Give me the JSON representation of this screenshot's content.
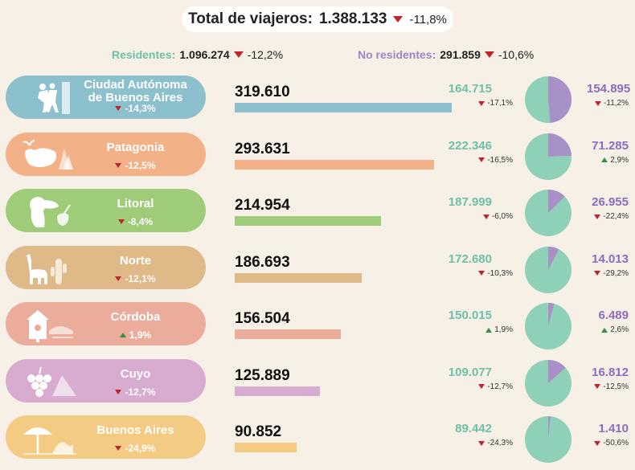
{
  "header": {
    "total_label": "Total de viajeros:",
    "total_value": "1.388.133",
    "total_change": "-11,8%",
    "residents_label": "Residentes:",
    "residents_value": "1.096.274",
    "residents_change": "-12,2%",
    "nonresidents_label": "No residentes:",
    "nonresidents_value": "291.859",
    "nonresidents_change": "-10,6%"
  },
  "colors": {
    "residents": "#8fd0b9",
    "nonresidents": "#a890c8"
  },
  "chart_data": {
    "type": "bar",
    "categories": [
      "Ciudad Autónoma de Buenos Aires",
      "Patagonia",
      "Litoral",
      "Norte",
      "Córdoba",
      "Cuyo",
      "Buenos Aires"
    ],
    "series": [
      {
        "name": "Total",
        "values": [
          319610,
          293631,
          214954,
          186693,
          156504,
          125889,
          90852
        ]
      },
      {
        "name": "Residentes",
        "values": [
          164715,
          222346,
          187999,
          172680,
          150015,
          109077,
          89442
        ]
      },
      {
        "name": "No residentes",
        "values": [
          154895,
          71285,
          26955,
          14013,
          6489,
          16812,
          1410
        ]
      }
    ],
    "regions": [
      {
        "name_l1": "Ciudad Autónoma",
        "name_l2": "de Buenos Aires",
        "icon": "tango-dancers-icon",
        "color": "#8cc0cd",
        "bar_color": "#8cc0cd",
        "total": "319.610",
        "total_num": 319610,
        "change": "-14,3%",
        "change_dir": "down",
        "res": "164.715",
        "res_num": 164715,
        "res_change": "-17,1%",
        "res_dir": "down",
        "nr": "154.895",
        "nr_num": 154895,
        "nr_change": "-11,2%",
        "nr_dir": "down"
      },
      {
        "name_l1": "Patagonia",
        "name_l2": "",
        "icon": "whale-icon",
        "color": "#f2b187",
        "bar_color": "#f2b187",
        "total": "293.631",
        "total_num": 293631,
        "change": "-12,5%",
        "change_dir": "down",
        "res": "222.346",
        "res_num": 222346,
        "res_change": "-16,5%",
        "res_dir": "down",
        "nr": "71.285",
        "nr_num": 71285,
        "nr_change": "2,9%",
        "nr_dir": "up"
      },
      {
        "name_l1": "Litoral",
        "name_l2": "",
        "icon": "toucan-icon",
        "color": "#9fcc79",
        "bar_color": "#9fcc79",
        "total": "214.954",
        "total_num": 214954,
        "change": "-8,4%",
        "change_dir": "down",
        "res": "187.999",
        "res_num": 187999,
        "res_change": "-6,0%",
        "res_dir": "down",
        "nr": "26.955",
        "nr_num": 26955,
        "nr_change": "-22,4%",
        "nr_dir": "down"
      },
      {
        "name_l1": "Norte",
        "name_l2": "",
        "icon": "llama-icon",
        "color": "#dfb988",
        "bar_color": "#dfb988",
        "total": "186.693",
        "total_num": 186693,
        "change": "-12,1%",
        "change_dir": "down",
        "res": "172.680",
        "res_num": 172680,
        "res_change": "-10,3%",
        "res_dir": "down",
        "nr": "14.013",
        "nr_num": 14013,
        "nr_change": "-29,2%",
        "nr_dir": "down"
      },
      {
        "name_l1": "Córdoba",
        "name_l2": "",
        "icon": "birdhouse-icon",
        "color": "#ecac9c",
        "bar_color": "#ecac9c",
        "total": "156.504",
        "total_num": 156504,
        "change": "1,9%",
        "change_dir": "up",
        "res": "150.015",
        "res_num": 150015,
        "res_change": "1,9%",
        "res_dir": "up",
        "nr": "6.489",
        "nr_num": 6489,
        "nr_change": "2,6%",
        "nr_dir": "up"
      },
      {
        "name_l1": "Cuyo",
        "name_l2": "",
        "icon": "grapes-icon",
        "color": "#d8acd0",
        "bar_color": "#d8acd0",
        "total": "125.889",
        "total_num": 125889,
        "change": "-12,7%",
        "change_dir": "down",
        "res": "109.077",
        "res_num": 109077,
        "res_change": "-12,7%",
        "res_dir": "down",
        "nr": "16.812",
        "nr_num": 16812,
        "nr_change": "-12,5%",
        "nr_dir": "down"
      },
      {
        "name_l1": "Buenos Aires",
        "name_l2": "",
        "icon": "beach-umbrella-icon",
        "color": "#f4cb82",
        "bar_color": "#f4cb82",
        "total": "90.852",
        "total_num": 90852,
        "change": "-24,9%",
        "change_dir": "down",
        "res": "89.442",
        "res_num": 89442,
        "res_change": "-24,3%",
        "res_dir": "down",
        "nr": "1.410",
        "nr_num": 1410,
        "nr_change": "-50,6%",
        "nr_dir": "down"
      }
    ]
  }
}
